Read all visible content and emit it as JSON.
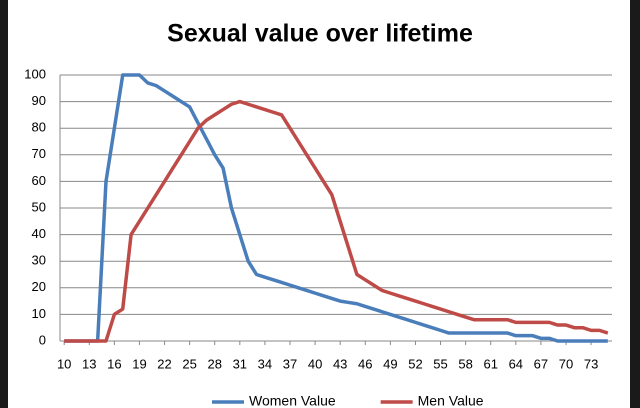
{
  "chart_data": {
    "type": "line",
    "title": "Sexual value over lifetime",
    "x": [
      10,
      11,
      12,
      13,
      14,
      15,
      16,
      17,
      18,
      19,
      20,
      21,
      22,
      23,
      24,
      25,
      26,
      27,
      28,
      29,
      30,
      31,
      32,
      33,
      34,
      35,
      36,
      37,
      38,
      39,
      40,
      41,
      42,
      43,
      44,
      45,
      46,
      47,
      48,
      49,
      50,
      51,
      52,
      53,
      54,
      55,
      56,
      57,
      58,
      59,
      60,
      61,
      62,
      63,
      64,
      65,
      66,
      67,
      68,
      69,
      70,
      71,
      72,
      73,
      74,
      75
    ],
    "series": [
      {
        "name": "Women Value",
        "color": "#4a7ebb",
        "values": [
          0,
          0,
          0,
          0,
          0,
          60,
          80,
          100,
          100,
          100,
          97,
          96,
          94,
          92,
          90,
          88,
          82,
          76,
          70,
          65,
          50,
          40,
          30,
          25,
          24,
          23,
          22,
          21,
          20,
          19,
          18,
          17,
          16,
          15,
          14.5,
          14,
          13,
          12,
          11,
          10,
          9,
          8,
          7,
          6,
          5,
          4,
          3,
          3,
          3,
          3,
          3,
          3,
          3,
          3,
          2,
          2,
          2,
          1,
          1,
          0,
          0,
          0,
          0,
          0,
          0,
          0
        ]
      },
      {
        "name": "Men Value",
        "color": "#be4b48",
        "values": [
          0,
          0,
          0,
          0,
          0,
          0,
          10,
          12,
          40,
          45,
          50,
          55,
          60,
          65,
          70,
          75,
          80,
          83,
          85,
          87,
          89,
          90,
          89,
          88,
          87,
          86,
          85,
          80,
          75,
          70,
          65,
          60,
          55,
          45,
          35,
          25,
          23,
          21,
          19,
          18,
          17,
          16,
          15,
          14,
          13,
          12,
          11,
          10,
          9,
          8,
          8,
          8,
          8,
          8,
          7,
          7,
          7,
          7,
          7,
          6,
          6,
          5,
          5,
          4,
          4,
          3
        ]
      }
    ],
    "xlim": [
      9.5,
      75.5
    ],
    "xticks": [
      10,
      13,
      16,
      19,
      22,
      25,
      28,
      31,
      34,
      37,
      40,
      43,
      46,
      49,
      52,
      55,
      58,
      61,
      64,
      67,
      70,
      73
    ],
    "ylim": [
      0,
      100
    ],
    "yticks": [
      0,
      10,
      20,
      30,
      40,
      50,
      60,
      70,
      80,
      90,
      100
    ],
    "grid": true,
    "legend": "bottom"
  }
}
